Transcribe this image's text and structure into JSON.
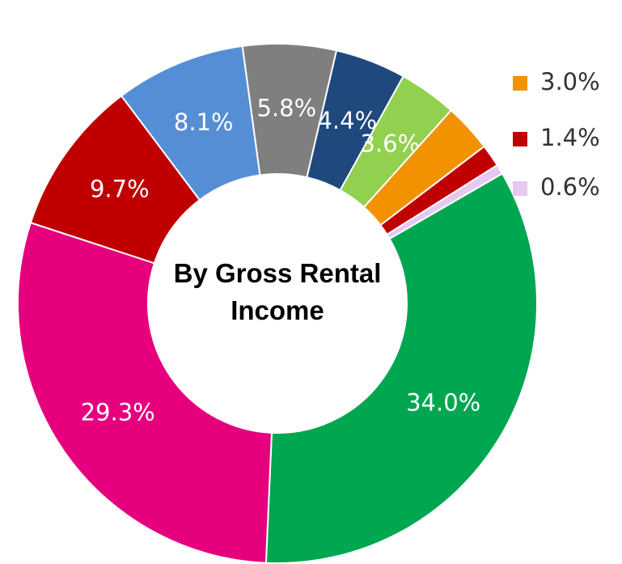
{
  "chart_data": {
    "type": "donut",
    "title": "By Gross Rental Income",
    "series": [
      {
        "values": [
          34.0,
          29.3,
          9.7,
          8.1,
          5.8,
          4.4,
          3.6,
          3.0,
          1.4,
          0.6
        ],
        "value_labels": [
          "34.0%",
          "29.3%",
          "9.7%",
          "8.1%",
          "5.8%",
          "4.4%",
          "3.6%",
          "3.0%",
          "1.4%",
          "0.6%"
        ],
        "colors": [
          "#00a650",
          "#e6007e",
          "#c00000",
          "#558ed5",
          "#7f7f7f",
          "#1f497d",
          "#92d050",
          "#f39200",
          "#c00000",
          "#e6c8f0"
        ]
      }
    ]
  }
}
